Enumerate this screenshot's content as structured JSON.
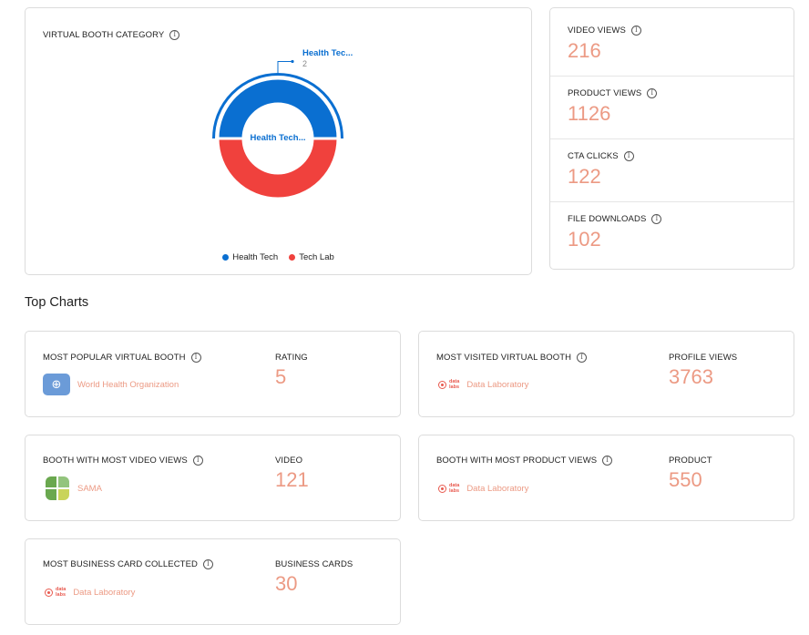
{
  "category_card": {
    "title": "VIRTUAL BOOTH CATEGORY",
    "tooltip_label": "Health Tec...",
    "tooltip_value": "2",
    "center_label": "Health Tech...",
    "legend": [
      {
        "name": "Health Tech",
        "color": "#0a6fd1"
      },
      {
        "name": "Tech Lab",
        "color": "#f0413d"
      }
    ]
  },
  "chart_data": {
    "type": "pie",
    "donut": true,
    "categories": [
      "Health Tech",
      "Tech Lab"
    ],
    "values": [
      2,
      2
    ],
    "colors": [
      "#0a6fd1",
      "#f0413d"
    ],
    "highlighted": "Health Tech",
    "legend_position": "bottom"
  },
  "stats": [
    {
      "label": "VIDEO VIEWS",
      "value": "216"
    },
    {
      "label": "PRODUCT VIEWS",
      "value": "1126"
    },
    {
      "label": "CTA CLICKS",
      "value": "122"
    },
    {
      "label": "FILE DOWNLOADS",
      "value": "102"
    }
  ],
  "top_charts": {
    "title": "Top Charts",
    "cards": [
      {
        "title": "MOST POPULAR VIRTUAL BOOTH",
        "entity": "World Health Organization",
        "logo": "who-logo-icon",
        "metric_label": "RATING",
        "metric_value": "5"
      },
      {
        "title": "MOST VISITED VIRTUAL BOOTH",
        "entity": "Data Laboratory",
        "logo": "data-labs-logo-icon",
        "metric_label": "PROFILE VIEWS",
        "metric_value": "3763"
      },
      {
        "title": "BOOTH WITH MOST VIDEO VIEWS",
        "entity": "SAMA",
        "logo": "sama-logo-icon",
        "metric_label": "VIDEO",
        "metric_value": "121"
      },
      {
        "title": "BOOTH WITH MOST PRODUCT VIEWS",
        "entity": "Data Laboratory",
        "logo": "data-labs-logo-icon",
        "metric_label": "PRODUCT",
        "metric_value": "550"
      },
      {
        "title": "MOST BUSINESS CARD COLLECTED",
        "entity": "Data Laboratory",
        "logo": "data-labs-logo-icon",
        "metric_label": "BUSINESS CARDS",
        "metric_value": "30"
      }
    ]
  },
  "logo_text": {
    "data_labs_line1": "data",
    "data_labs_line2": "labs"
  },
  "icons": {
    "info": "info-icon"
  }
}
